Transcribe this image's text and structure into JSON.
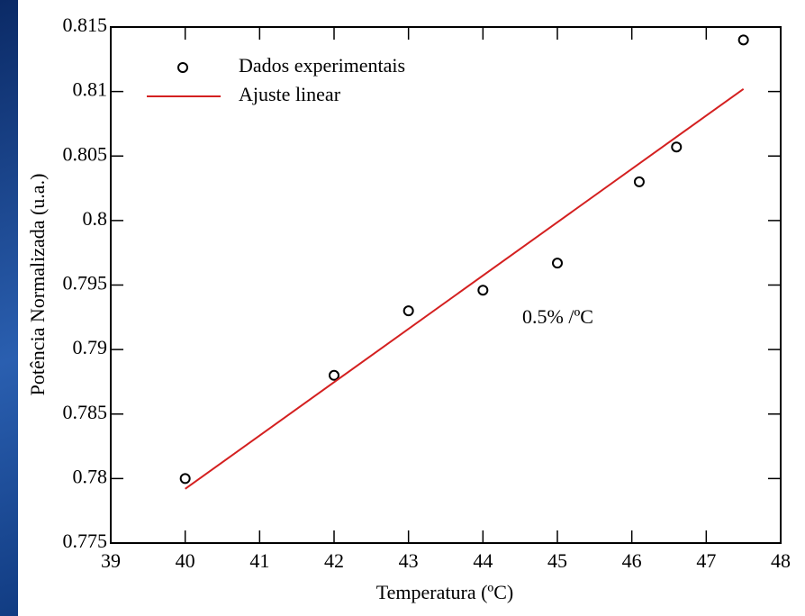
{
  "chart_data": {
    "type": "scatter",
    "xlabel": "Temperatura (ºC)",
    "ylabel": "Potência Normalizada (u.a.)",
    "annotation": "0.5% /ºC",
    "xlim": [
      39,
      48
    ],
    "xticks": [
      39,
      40,
      41,
      42,
      43,
      44,
      45,
      46,
      47,
      48
    ],
    "ylim": [
      0.775,
      0.815
    ],
    "yticks": [
      0.775,
      0.78,
      0.785,
      0.79,
      0.795,
      0.8,
      0.805,
      0.81,
      0.815
    ],
    "legend": "upper left",
    "series": [
      {
        "name": "Dados experimentais",
        "type": "scatter",
        "color": "#000000",
        "x": [
          40,
          42,
          43,
          44,
          45,
          46.1,
          46.6,
          47.5
        ],
        "values": [
          0.78,
          0.788,
          0.793,
          0.7946,
          0.7967,
          0.803,
          0.8057,
          0.814
        ]
      },
      {
        "name": "Ajuste linear",
        "type": "line",
        "color": "#d42020",
        "x": [
          40,
          47.5
        ],
        "values": [
          0.7792,
          0.8102
        ]
      }
    ]
  }
}
